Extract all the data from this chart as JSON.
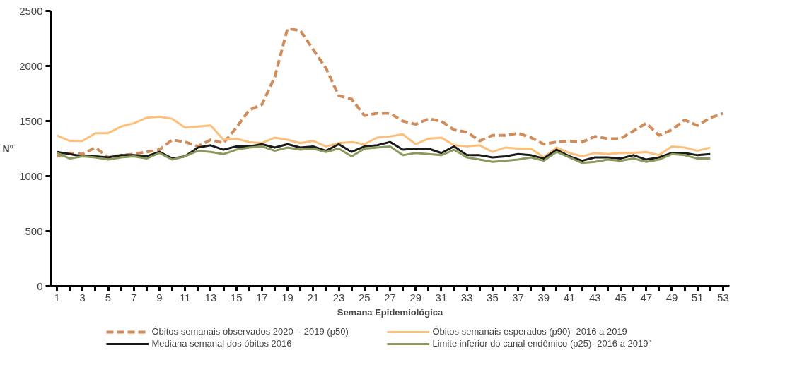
{
  "chart_data": {
    "type": "line",
    "xlabel": "Semana Epidemiológica",
    "ylabel": "N°",
    "x": [
      1,
      2,
      3,
      4,
      5,
      6,
      7,
      8,
      9,
      10,
      11,
      12,
      13,
      14,
      15,
      16,
      17,
      18,
      19,
      20,
      21,
      22,
      23,
      24,
      25,
      26,
      27,
      28,
      29,
      30,
      31,
      32,
      33,
      34,
      35,
      36,
      37,
      38,
      39,
      40,
      41,
      42,
      43,
      44,
      45,
      46,
      47,
      48,
      49,
      50,
      51,
      52,
      53
    ],
    "xlim": [
      0.5,
      53.5
    ],
    "ylim": [
      0,
      2500
    ],
    "yticks": [
      0,
      500,
      1000,
      1500,
      2000,
      2500
    ],
    "xticks": [
      1,
      {
        "value": 2,
        "label": null
      },
      3,
      {
        "value": 4,
        "label": null
      },
      5,
      {
        "value": 6,
        "label": null
      },
      7,
      {
        "value": 8,
        "label": null
      },
      9,
      {
        "value": 10,
        "label": null
      },
      11,
      {
        "value": 12,
        "label": null
      },
      13,
      {
        "value": 14,
        "label": null
      },
      15,
      {
        "value": 16,
        "label": null
      },
      17,
      {
        "value": 18,
        "label": null
      },
      19,
      {
        "value": 20,
        "label": null
      },
      21,
      {
        "value": 22,
        "label": null
      },
      23,
      {
        "value": 24,
        "label": null
      },
      25,
      {
        "value": 26,
        "label": null
      },
      27,
      {
        "value": 28,
        "label": null
      },
      29,
      {
        "value": 30,
        "label": null
      },
      31,
      {
        "value": 32,
        "label": null
      },
      33,
      {
        "value": 34,
        "label": null
      },
      35,
      {
        "value": 36,
        "label": null
      },
      37,
      {
        "value": 38,
        "label": null
      },
      39,
      {
        "value": 40,
        "label": null
      },
      41,
      {
        "value": 42,
        "label": null
      },
      43,
      {
        "value": 44,
        "label": null
      },
      45,
      {
        "value": 46,
        "label": null
      },
      47,
      {
        "value": 48,
        "label": null
      },
      49,
      {
        "value": 50,
        "label": null
      },
      51,
      {
        "value": 52,
        "label": null
      },
      53
    ],
    "grid": false,
    "legend": "bottom",
    "marker": "none",
    "series": [
      {
        "name": "Óbitos semanais observados 2020  - 2019 (p50)",
        "color": "#d08c5a",
        "line_style": "dashed",
        "values": [
          1180,
          1210,
          1200,
          1260,
          1170,
          1190,
          1200,
          1220,
          1240,
          1330,
          1310,
          1270,
          1330,
          1300,
          1440,
          1600,
          1650,
          1900,
          2340,
          2320,
          2150,
          1980,
          1730,
          1700,
          1550,
          1570,
          1570,
          1500,
          1470,
          1520,
          1500,
          1420,
          1400,
          1320,
          1370,
          1370,
          1390,
          1350,
          1290,
          1310,
          1320,
          1310,
          1360,
          1340,
          1340,
          1410,
          1480,
          1370,
          1420,
          1510,
          1460,
          1530,
          1570
        ]
      },
      {
        "name": "Óbitos semanais esperados (p90)- 2016 a 2019",
        "color": "#fdbf7a",
        "line_style": "solid",
        "values": [
          1370,
          1320,
          1320,
          1390,
          1390,
          1450,
          1480,
          1530,
          1540,
          1520,
          1440,
          1450,
          1460,
          1330,
          1340,
          1310,
          1300,
          1350,
          1330,
          1300,
          1320,
          1270,
          1300,
          1310,
          1290,
          1350,
          1360,
          1380,
          1290,
          1340,
          1350,
          1280,
          1270,
          1280,
          1220,
          1260,
          1250,
          1250,
          1170,
          1260,
          1210,
          1180,
          1210,
          1200,
          1210,
          1210,
          1220,
          1190,
          1270,
          1260,
          1230,
          1260,
          null
        ]
      },
      {
        "name": "Mediana semanal dos óbitos 2016",
        "color": "#1a1a1a",
        "line_style": "solid",
        "values": [
          1220,
          1200,
          1180,
          1180,
          1170,
          1190,
          1190,
          1180,
          1220,
          1160,
          1180,
          1260,
          1280,
          1240,
          1270,
          1270,
          1290,
          1260,
          1290,
          1260,
          1270,
          1230,
          1290,
          1220,
          1270,
          1280,
          1310,
          1240,
          1250,
          1250,
          1210,
          1270,
          1190,
          1190,
          1170,
          1180,
          1200,
          1190,
          1160,
          1240,
          1180,
          1140,
          1170,
          1170,
          1160,
          1190,
          1150,
          1170,
          1210,
          1210,
          1190,
          1200,
          null
        ]
      },
      {
        "name": "Limite inferior do canal endêmico (p25)- 2016 a 2019\"",
        "color": "#8a9a5b",
        "line_style": "solid",
        "values": [
          1210,
          1160,
          1180,
          1170,
          1150,
          1170,
          1180,
          1160,
          1210,
          1150,
          1180,
          1230,
          1220,
          1200,
          1240,
          1260,
          1270,
          1230,
          1260,
          1240,
          1250,
          1220,
          1250,
          1180,
          1250,
          1260,
          1270,
          1190,
          1210,
          1200,
          1190,
          1240,
          1170,
          1150,
          1130,
          1140,
          1150,
          1170,
          1140,
          1220,
          1170,
          1120,
          1130,
          1150,
          1140,
          1160,
          1130,
          1150,
          1200,
          1190,
          1160,
          1160,
          null
        ]
      }
    ]
  }
}
